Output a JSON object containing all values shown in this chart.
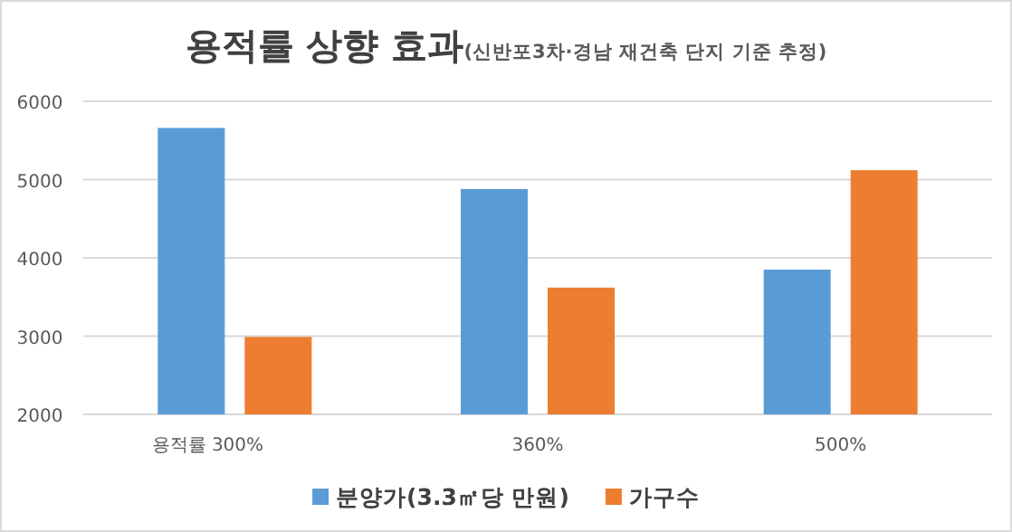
{
  "chart_data": {
    "type": "bar",
    "title": "용적률 상향 효과",
    "subtitle": "(신반포3차·경남 재건축 단지 기준 추정)",
    "categories": [
      "용적률 300%",
      "360%",
      "500%"
    ],
    "series": [
      {
        "name": "분양가(3.3㎡당 만원)",
        "color": "#5b9bd5",
        "values": [
          5660,
          4880,
          3850
        ]
      },
      {
        "name": "가구수",
        "color": "#ed7d31",
        "values": [
          2990,
          3620,
          5120
        ]
      }
    ],
    "ylim": [
      2000,
      6000
    ],
    "yticks": [
      2000,
      3000,
      4000,
      5000,
      6000
    ],
    "grid": "y",
    "legend": "bottom"
  }
}
